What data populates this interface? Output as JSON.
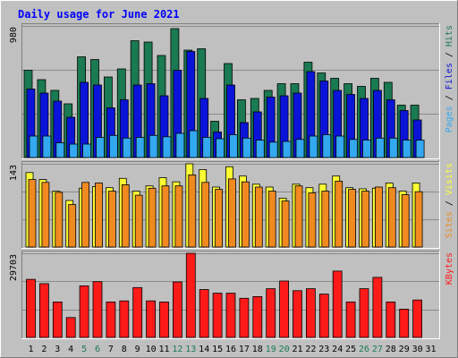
{
  "chart_data": {
    "type": "bar",
    "title": "Daily usage for June 2021",
    "categories": [
      "1",
      "2",
      "3",
      "4",
      "5",
      "6",
      "7",
      "8",
      "9",
      "10",
      "11",
      "12",
      "13",
      "14",
      "15",
      "16",
      "17",
      "18",
      "19",
      "20",
      "21",
      "22",
      "23",
      "24",
      "25",
      "26",
      "27",
      "28",
      "29",
      "30",
      "31"
    ],
    "weekend_days": [
      "5",
      "6",
      "12",
      "13",
      "19",
      "20",
      "26",
      "27"
    ],
    "panels": [
      {
        "id": "pages-files-hits",
        "max_label": "980",
        "ymax": 980,
        "axis_label_parts": [
          "Pages",
          " / ",
          "Files",
          " / ",
          "Hits"
        ],
        "series": [
          {
            "name": "Hits",
            "color": "#1a7a52",
            "values": [
              650,
              580,
              500,
              400,
              750,
              730,
              600,
              660,
              870,
              860,
              760,
              960,
              800,
              810,
              270,
              700,
              430,
              440,
              500,
              550,
              550,
              710,
              630,
              590,
              550,
              530,
              590,
              560,
              390,
              390,
              0
            ]
          },
          {
            "name": "Files",
            "color": "#0a14d8",
            "values": [
              510,
              480,
              420,
              300,
              560,
              540,
              370,
              430,
              540,
              550,
              460,
              650,
              790,
              440,
              190,
              540,
              260,
              340,
              450,
              460,
              480,
              640,
              570,
              500,
              470,
              440,
              500,
              430,
              350,
              280,
              0
            ]
          },
          {
            "name": "Pages",
            "color": "#33a8f0",
            "values": [
              160,
              160,
              110,
              100,
              100,
              150,
              165,
              145,
              150,
              165,
              155,
              180,
              200,
              150,
              140,
              170,
              145,
              130,
              115,
              120,
              135,
              160,
              170,
              160,
              135,
              130,
              145,
              145,
              130,
              130,
              0
            ]
          }
        ]
      },
      {
        "id": "visits-sites",
        "max_label": "143",
        "ymax": 143,
        "axis_label_parts": [
          "Sites",
          " / ",
          "Visits"
        ],
        "series": [
          {
            "name": "Visits",
            "color": "#ffff33",
            "values": [
              128,
              116,
              96,
              80,
              101,
              104,
              102,
              118,
              96,
              105,
              119,
              112,
              143,
              133,
              103,
              138,
              122,
              108,
              103,
              84,
              108,
              102,
              108,
              122,
              102,
              100,
              101,
              110,
              96,
              110,
              0
            ]
          },
          {
            "name": "Sites",
            "color": "#f08a20",
            "values": [
              116,
              111,
              94,
              73,
              111,
              110,
              96,
              107,
              89,
              101,
              105,
              105,
              124,
              111,
              99,
              117,
              112,
              103,
              96,
              79,
              105,
              93,
              96,
              113,
              99,
              96,
              103,
              102,
              90,
              95,
              0
            ]
          }
        ]
      },
      {
        "id": "kbytes",
        "max_label": "29703",
        "ymax": 29703,
        "axis_label_parts": [
          "KBytes"
        ],
        "series": [
          {
            "name": "KBytes",
            "color": "#ff1a1a",
            "values": [
              20500,
              19000,
              12500,
              7000,
              18200,
              19700,
              12500,
              12900,
              17600,
              12900,
              12500,
              19600,
              29700,
              16900,
              15600,
              15600,
              13800,
              14400,
              17200,
              19900,
              16500,
              17200,
              15300,
              23400,
              12500,
              17200,
              21200,
              12500,
              10000,
              13200,
              0
            ]
          }
        ]
      }
    ],
    "axis_label_colors": {
      "Pages": "#33a8f0",
      "Files": "#0a14d8",
      "Hits": "#1a7a52",
      "Sites": "#f08a20",
      "Visits": "#ffff33",
      "KBytes": "#ff1a1a",
      "separator": "#000000"
    },
    "colors": {
      "background": "#c0c0c0",
      "title": "#0000ff",
      "weekday_label": "#000000",
      "weekend_label": "#1a7a52"
    }
  }
}
